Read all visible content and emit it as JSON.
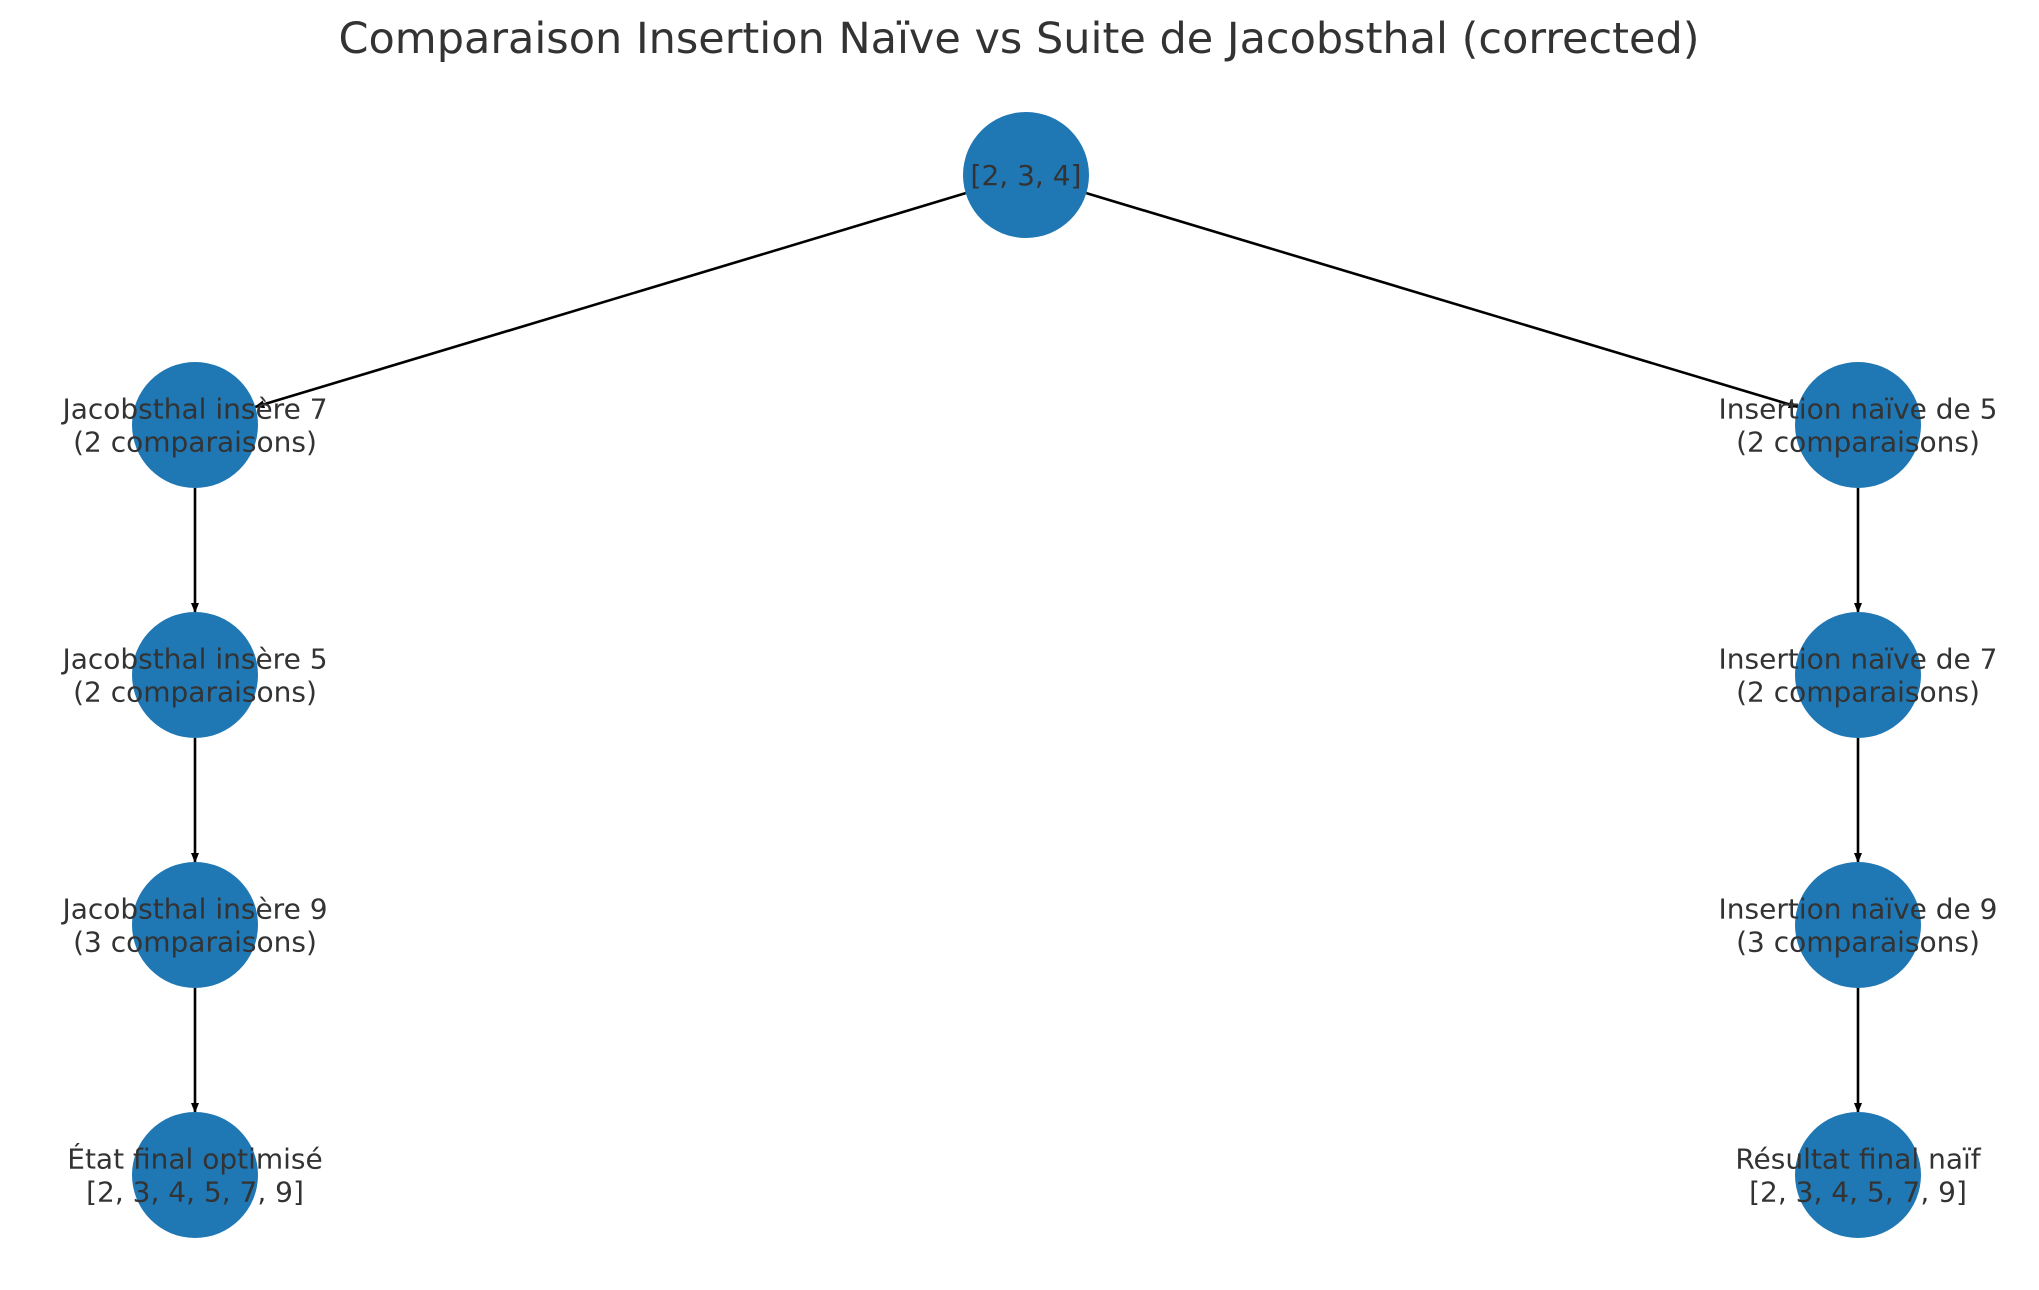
{
  "title": "Comparaison Insertion Naïve vs Suite de Jacobsthal (corrected)",
  "colors": {
    "node_fill": "#1f77b4",
    "edge": "#000000",
    "text": "#333333"
  },
  "nodes": [
    {
      "id": "root",
      "lines": [
        "[2, 3, 4]"
      ]
    },
    {
      "id": "j1",
      "lines": [
        "Jacobsthal insère 7",
        "(2 comparaisons)"
      ]
    },
    {
      "id": "j2",
      "lines": [
        "Jacobsthal insère 5",
        "(2 comparaisons)"
      ]
    },
    {
      "id": "j3",
      "lines": [
        "Jacobsthal insère 9",
        "(3 comparaisons)"
      ]
    },
    {
      "id": "j4",
      "lines": [
        "État final optimisé",
        "[2, 3, 4, 5, 7, 9]"
      ]
    },
    {
      "id": "n1",
      "lines": [
        "Insertion naïve de 5",
        "(2 comparaisons)"
      ]
    },
    {
      "id": "n2",
      "lines": [
        "Insertion naïve de 7",
        "(2 comparaisons)"
      ]
    },
    {
      "id": "n3",
      "lines": [
        "Insertion naïve de 9",
        "(3 comparaisons)"
      ]
    },
    {
      "id": "n4",
      "lines": [
        "Résultat final naïf",
        "[2, 3, 4, 5, 7, 9]"
      ]
    }
  ],
  "edges": [
    {
      "from": "root",
      "to": "j1"
    },
    {
      "from": "root",
      "to": "n1"
    },
    {
      "from": "j1",
      "to": "j2"
    },
    {
      "from": "j2",
      "to": "j3"
    },
    {
      "from": "j3",
      "to": "j4"
    },
    {
      "from": "n1",
      "to": "n2"
    },
    {
      "from": "n2",
      "to": "n3"
    },
    {
      "from": "n3",
      "to": "n4"
    }
  ]
}
